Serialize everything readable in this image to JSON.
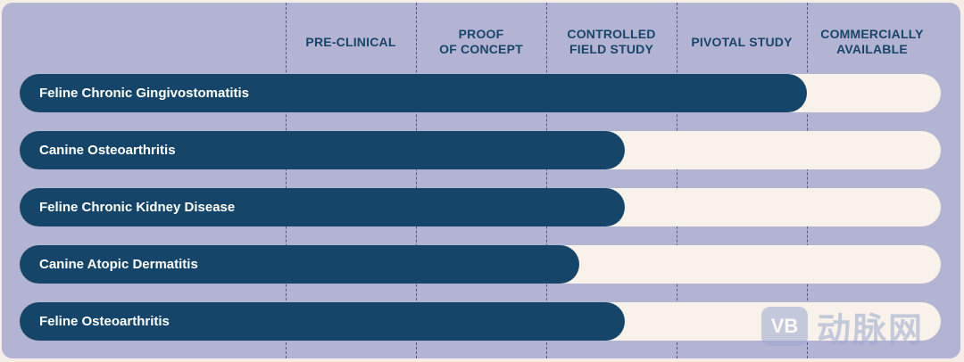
{
  "chart_data": {
    "type": "bar",
    "orientation": "horizontal",
    "stages": [
      "PRE-CLINICAL",
      "PROOF\nOF CONCEPT",
      "CONTROLLED\nFIELD STUDY",
      "PIVOTAL STUDY",
      "COMMERCIALLY\nAVAILABLE"
    ],
    "categories": [
      "Feline Chronic Gingivostomatitis",
      "Canine Osteoarthritis",
      "Feline Chronic Kidney Disease",
      "Canine Atopic Dermatitis",
      "Feline Osteoarthritis"
    ],
    "progress_stages": [
      4.0,
      2.6,
      2.6,
      2.25,
      2.6
    ],
    "stage_range": [
      0,
      5
    ]
  },
  "colors": {
    "panel": "#b3b3d4",
    "bar": "#16456a",
    "track": "#f8f2ea",
    "header_text": "#18456a"
  },
  "watermark": {
    "logo_text": "VB",
    "text": "动脉网"
  }
}
